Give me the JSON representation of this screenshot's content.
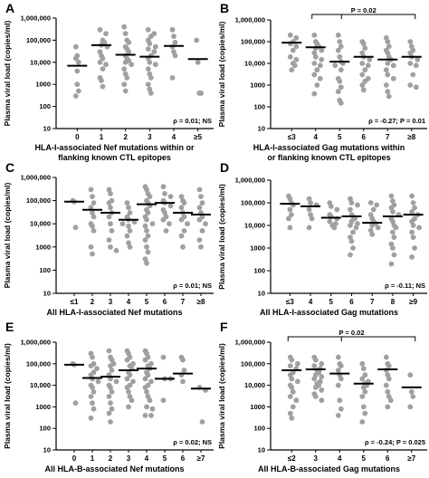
{
  "figure": {
    "y_ticks": [
      "1,000,000",
      "100,000",
      "10,000",
      "1000",
      "100",
      "10"
    ],
    "y_tick_values": [
      1000000,
      100000,
      10000,
      1000,
      100,
      10
    ],
    "point_color": "#a0a0a0",
    "median_color": "#000000"
  },
  "chart_data": [
    {
      "panel": "A",
      "type": "scatter",
      "ylabel": "Plasma viral load (copies/ml)",
      "ylim": [
        10,
        1000000
      ],
      "yscale": "log",
      "xlabel_lines": [
        "HLA-I-associated Nef mutations within or",
        "flanking known CTL epitopes"
      ],
      "categories": [
        "0",
        "1",
        "2",
        "3",
        "4",
        "≥5"
      ],
      "points": [
        [
          50000,
          4000,
          10000,
          15000,
          1000,
          500,
          300,
          20000
        ],
        [
          300000,
          200000,
          100000,
          80000,
          60000,
          50000,
          30000,
          20000,
          15000,
          10000,
          8000,
          5000,
          2000,
          1500,
          800
        ],
        [
          400000,
          200000,
          100000,
          80000,
          50000,
          40000,
          30000,
          20000,
          15000,
          12000,
          10000,
          8000,
          5000,
          3000,
          2000,
          1000,
          500
        ],
        [
          300000,
          200000,
          150000,
          100000,
          70000,
          50000,
          40000,
          30000,
          20000,
          15000,
          10000,
          8000,
          5000,
          3000,
          2000,
          1000,
          600,
          400
        ],
        [
          300000,
          150000,
          80000,
          50000,
          30000,
          20000,
          2000
        ],
        [
          100000,
          10000,
          400,
          400
        ]
      ],
      "medians": [
        7000,
        60000,
        22000,
        18000,
        55000,
        14000
      ],
      "stat": "ρ = 0.01; NS"
    },
    {
      "panel": "B",
      "type": "scatter",
      "ylabel": "Plasma viral load (copies/ml)",
      "ylim": [
        10,
        1000000
      ],
      "yscale": "log",
      "xlabel_lines": [
        "HLA-I-associated Gag mutations within",
        "or flanking known CTL epitopes"
      ],
      "categories": [
        "≤3",
        "4",
        "5",
        "6",
        "7",
        "≥8"
      ],
      "points": [
        [
          200000,
          150000,
          100000,
          80000,
          60000,
          40000,
          20000,
          15000,
          10000,
          8000,
          5000
        ],
        [
          200000,
          100000,
          80000,
          60000,
          50000,
          40000,
          30000,
          20000,
          15000,
          10000,
          8000,
          5000,
          3000,
          2000,
          1000,
          400
        ],
        [
          200000,
          100000,
          60000,
          40000,
          20000,
          12000,
          10000,
          8000,
          5000,
          2000,
          1500,
          800,
          500,
          200,
          150
        ],
        [
          100000,
          80000,
          50000,
          30000,
          20000,
          15000,
          10000,
          8000,
          5000,
          3000,
          2000,
          1500,
          1000,
          600
        ],
        [
          150000,
          100000,
          60000,
          40000,
          30000,
          20000,
          15000,
          10000,
          8000,
          5000,
          3000,
          2000,
          1000,
          500,
          300
        ],
        [
          100000,
          60000,
          40000,
          30000,
          20000,
          15000,
          10000,
          8000,
          3000,
          1000,
          800
        ]
      ],
      "medians": [
        90000,
        55000,
        12000,
        20000,
        15000,
        20000
      ],
      "stat": "ρ = -0.27; P = 0.01",
      "bracket": {
        "label": "P = 0.02",
        "from": 1,
        "left_span": [
          0,
          2
        ],
        "right_span": [
          2,
          5
        ]
      }
    },
    {
      "panel": "C",
      "type": "scatter",
      "ylabel": "Plasma viral load (copies/ml)",
      "ylim": [
        10,
        1000000
      ],
      "yscale": "log",
      "xlabel_lines": [
        "All HLA-I-associated Nef mutations"
      ],
      "categories": [
        "≤1",
        "2",
        "3",
        "4",
        "5",
        "6",
        "7",
        "≥8"
      ],
      "points": [
        [
          100000,
          90000,
          7000
        ],
        [
          300000,
          150000,
          80000,
          50000,
          30000,
          20000,
          10000,
          8000,
          5000,
          1000,
          500
        ],
        [
          300000,
          200000,
          100000,
          80000,
          50000,
          30000,
          20000,
          10000,
          5000,
          2000,
          1000,
          700
        ],
        [
          80000,
          50000,
          30000,
          20000,
          15000,
          12000,
          10000,
          8000,
          5000,
          3000,
          1500,
          1000
        ],
        [
          400000,
          300000,
          200000,
          150000,
          100000,
          80000,
          60000,
          40000,
          30000,
          20000,
          15000,
          10000,
          8000,
          5000,
          3000,
          2000,
          1000,
          600,
          300,
          200
        ],
        [
          400000,
          200000,
          150000,
          100000,
          80000,
          60000,
          40000,
          30000,
          20000,
          15000,
          10000,
          5000
        ],
        [
          150000,
          100000,
          80000,
          50000,
          30000,
          20000,
          15000,
          10000,
          5000,
          3000,
          1000
        ],
        [
          300000,
          150000,
          80000,
          50000,
          30000,
          20000,
          15000,
          10000,
          5000,
          2000,
          1000
        ]
      ],
      "medians": [
        90000,
        40000,
        30000,
        15000,
        70000,
        80000,
        30000,
        25000
      ],
      "stat": "ρ = 0.01; NS"
    },
    {
      "panel": "D",
      "type": "scatter",
      "ylabel": "Plasma viral load (copies/ml)",
      "ylim": [
        10,
        1000000
      ],
      "yscale": "log",
      "xlabel_lines": [
        "All HLA-I-associated Gag mutations"
      ],
      "categories": [
        "≤3",
        "4",
        "5",
        "6",
        "7",
        "8",
        "≥9"
      ],
      "points": [
        [
          200000,
          150000,
          100000,
          80000,
          50000,
          30000,
          20000,
          8000
        ],
        [
          150000,
          100000,
          80000,
          50000,
          30000,
          20000,
          8000
        ],
        [
          100000,
          70000,
          50000,
          30000,
          25000,
          20000,
          15000,
          12000,
          10000,
          8000
        ],
        [
          150000,
          100000,
          80000,
          50000,
          30000,
          25000,
          20000,
          15000,
          12000,
          10000,
          8000,
          5000,
          3000,
          2000,
          1000,
          500
        ],
        [
          100000,
          80000,
          50000,
          30000,
          20000,
          15000,
          12000,
          10000,
          8000,
          6000,
          4000
        ],
        [
          200000,
          120000,
          80000,
          60000,
          40000,
          30000,
          20000,
          15000,
          10000,
          8000,
          5000,
          3000,
          1500,
          1000,
          500,
          200
        ],
        [
          200000,
          100000,
          60000,
          40000,
          30000,
          20000,
          15000,
          10000,
          8000,
          5000,
          3000,
          1000,
          400
        ]
      ],
      "medians": [
        90000,
        70000,
        22000,
        25000,
        13000,
        25000,
        30000
      ],
      "stat": "ρ = -0.11; NS"
    },
    {
      "panel": "E",
      "type": "scatter",
      "ylabel": "Plasma viral load (copies/ml)",
      "ylim": [
        10,
        1000000
      ],
      "yscale": "log",
      "xlabel_lines": [
        "All HLA-B-associated Nef mutations"
      ],
      "categories": [
        "0",
        "1",
        "2",
        "3",
        "4",
        "5",
        "6",
        "≥7"
      ],
      "points": [
        [
          100000,
          90000,
          1500
        ],
        [
          300000,
          200000,
          100000,
          80000,
          60000,
          40000,
          30000,
          20000,
          15000,
          10000,
          8000,
          5000,
          3000,
          1500,
          800,
          300
        ],
        [
          400000,
          200000,
          150000,
          100000,
          80000,
          50000,
          30000,
          20000,
          15000,
          10000,
          8000,
          5000,
          3000,
          1500,
          800,
          500,
          200
        ],
        [
          400000,
          300000,
          200000,
          150000,
          100000,
          80000,
          60000,
          40000,
          30000,
          20000,
          15000,
          10000,
          8000,
          5000,
          3000,
          2000,
          1000
        ],
        [
          400000,
          300000,
          200000,
          150000,
          100000,
          80000,
          60000,
          40000,
          30000,
          20000,
          15000,
          10000,
          8000,
          5000,
          3000,
          2000,
          1000,
          800,
          400,
          400
        ],
        [
          200000,
          20000,
          20000,
          2000
        ],
        [
          200000,
          150000,
          50000,
          30000,
          15000
        ],
        [
          8000,
          6000,
          200
        ]
      ],
      "medians": [
        90000,
        22000,
        25000,
        50000,
        60000,
        20000,
        35000,
        7000
      ],
      "stat": "ρ = 0.02; NS"
    },
    {
      "panel": "F",
      "type": "scatter",
      "ylabel": "Plasma viral load (copies/ml)",
      "ylim": [
        10,
        1000000
      ],
      "yscale": "log",
      "xlabel_lines": [
        "All HLA-B-associated Gag mutations"
      ],
      "categories": [
        "≤2",
        "3",
        "4",
        "5",
        "6",
        "≥7"
      ],
      "points": [
        [
          200000,
          150000,
          100000,
          80000,
          60000,
          40000,
          30000,
          20000,
          15000,
          10000,
          8000,
          5000,
          3000,
          2000,
          1000,
          500,
          300
        ],
        [
          200000,
          150000,
          100000,
          80000,
          60000,
          50000,
          40000,
          30000,
          25000,
          20000,
          15000,
          12000,
          10000,
          8000,
          6000,
          4000,
          3000,
          2000
        ],
        [
          200000,
          100000,
          80000,
          50000,
          30000,
          20000,
          10000,
          2000,
          800,
          400
        ],
        [
          100000,
          60000,
          30000,
          20000,
          15000,
          12000,
          10000,
          8000,
          5000,
          3000,
          1000,
          500,
          200
        ],
        [
          200000,
          100000,
          80000,
          50000,
          30000,
          20000,
          10000,
          5000,
          3000,
          2000,
          1000
        ],
        [
          30000,
          5000,
          3000,
          1000
        ]
      ],
      "medians": [
        50000,
        55000,
        35000,
        12000,
        55000,
        8000
      ],
      "stat": "ρ = -0.24; P = 0.025",
      "bracket": {
        "label": "P = 0.02",
        "from": 0,
        "left_span": [
          0,
          2
        ],
        "right_span": [
          2,
          5
        ]
      }
    }
  ]
}
